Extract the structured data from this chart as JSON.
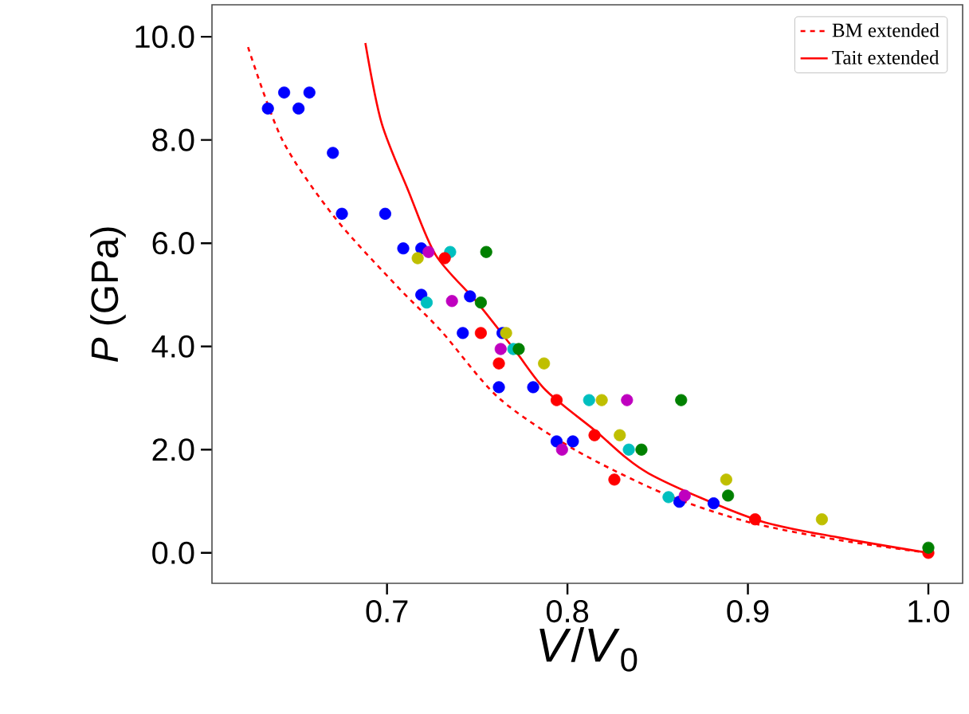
{
  "chart_data": {
    "type": "scatter",
    "xlabel": "*V*/*V*$_{0}$",
    "ylabel": "*P* (GPa)",
    "xlim": [
      0.603,
      1.019
    ],
    "ylim": [
      -0.59,
      10.62
    ],
    "xticks": [
      {
        "value": 0.7,
        "label": "0.7"
      },
      {
        "value": 0.8,
        "label": "0.8"
      },
      {
        "value": 0.9,
        "label": "0.9"
      },
      {
        "value": 1.0,
        "label": "1.0"
      }
    ],
    "yticks": [
      {
        "value": 0,
        "label": "0.0"
      },
      {
        "value": 2,
        "label": "2.0"
      },
      {
        "value": 4,
        "label": "4.0"
      },
      {
        "value": 6,
        "label": "6.0"
      },
      {
        "value": 8,
        "label": "8.0"
      },
      {
        "value": 10,
        "label": "10.0"
      }
    ],
    "legend": "top right",
    "grid": false,
    "series": [
      {
        "marker": "circle",
        "color": "#0000ff",
        "x": [
          0.634,
          0.643,
          0.651,
          0.657,
          0.67,
          0.675,
          0.699,
          0.709,
          0.719,
          0.719,
          0.746,
          0.742,
          0.764,
          0.762,
          0.781,
          0.794,
          0.803,
          0.862,
          0.881
        ],
        "values": [
          8.61,
          8.92,
          8.61,
          8.92,
          7.75,
          6.57,
          6.57,
          5.9,
          5.9,
          5.0,
          4.97,
          4.26,
          4.26,
          3.21,
          3.21,
          2.16,
          2.16,
          0.99,
          0.96
        ]
      },
      {
        "marker": "circle",
        "color": "#bf00bf",
        "x": [
          0.723,
          0.736,
          0.763,
          0.797,
          0.833,
          0.865
        ],
        "values": [
          5.83,
          4.88,
          3.95,
          2.0,
          2.96,
          1.11
        ]
      },
      {
        "marker": "circle",
        "color": "#00bfbf",
        "x": [
          0.735,
          0.722,
          0.77,
          0.812,
          0.834,
          0.856
        ],
        "values": [
          5.83,
          4.85,
          3.95,
          2.96,
          2.0,
          1.08
        ]
      },
      {
        "marker": "circle",
        "color": "#bfbf00",
        "x": [
          0.717,
          0.766,
          0.787,
          0.819,
          0.829,
          0.888,
          0.941
        ],
        "values": [
          5.71,
          4.26,
          3.67,
          2.96,
          2.28,
          1.42,
          0.65
        ]
      },
      {
        "marker": "circle",
        "color": "#ff0000",
        "x": [
          0.732,
          0.752,
          0.762,
          0.794,
          0.815,
          0.826,
          0.904,
          1.0
        ],
        "values": [
          5.71,
          4.26,
          3.67,
          2.96,
          2.28,
          1.42,
          0.65,
          0.0
        ]
      },
      {
        "marker": "circle",
        "color": "#008000",
        "x": [
          0.755,
          0.752,
          0.773,
          0.863,
          0.841,
          0.889,
          1.0
        ],
        "values": [
          5.83,
          4.85,
          3.95,
          2.96,
          2.0,
          1.11,
          0.1
        ]
      },
      {
        "type": "line",
        "marker": "none",
        "name": "BM extended",
        "color": "#ff0000",
        "line_style": "dashed",
        "x": [
          0.623,
          0.642,
          0.671,
          0.706,
          0.73,
          0.762,
          0.804,
          0.854,
          0.9,
          0.95,
          1.0
        ],
        "values": [
          9.8,
          8.0,
          6.5,
          5.15,
          4.3,
          3.0,
          2.0,
          1.14,
          0.6,
          0.25,
          0.0
        ]
      },
      {
        "type": "line",
        "marker": "none",
        "name": "Tait extended",
        "color": "#ff0000",
        "line_style": "solid",
        "x": [
          0.688,
          0.697,
          0.712,
          0.727,
          0.75,
          0.771,
          0.788,
          0.815,
          0.845,
          0.904,
          0.95,
          1.0
        ],
        "values": [
          9.88,
          8.33,
          7.0,
          5.77,
          4.85,
          3.92,
          3.15,
          2.38,
          1.54,
          0.65,
          0.3,
          0.0
        ]
      }
    ]
  }
}
